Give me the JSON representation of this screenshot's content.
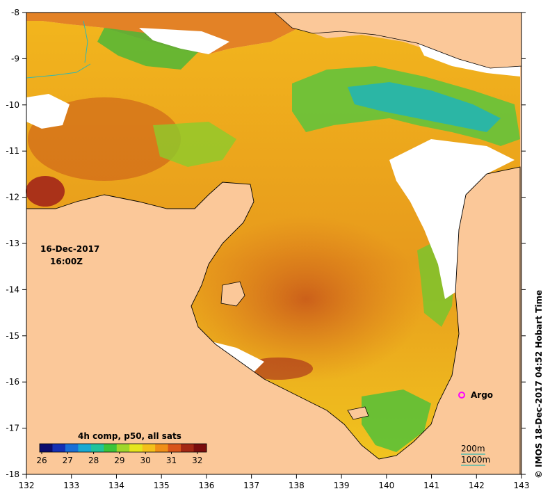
{
  "map": {
    "date_line": "16-Dec-2017",
    "time_line": "16:00Z",
    "credit": "© IMOS 18-Dec-2017 04:52 Hobart Time",
    "longitude_ticks": [
      "132",
      "133",
      "134",
      "135",
      "136",
      "137",
      "138",
      "139",
      "140",
      "141",
      "142",
      "143"
    ],
    "latitude_ticks": [
      "-8",
      "-9",
      "-10",
      "-11",
      "-12",
      "-13",
      "-14",
      "-15",
      "-16",
      "-17",
      "-18"
    ],
    "colorbar": {
      "title": "4h comp, p50, all sats",
      "tick_labels": [
        "26",
        "27",
        "28",
        "29",
        "30",
        "31",
        "32"
      ],
      "colors": [
        "#0b0c6e",
        "#1430b4",
        "#1a6fd6",
        "#19a9d2",
        "#22c39c",
        "#3cc43a",
        "#9fd72a",
        "#e6e51d",
        "#f4c01a",
        "#f08f17",
        "#d9551a",
        "#a32713",
        "#7a0d0d"
      ]
    },
    "marker": {
      "label": "Argo",
      "color": "#ff00ff"
    },
    "depth_legend": {
      "contour_200": "200m",
      "contour_1000": "1000m",
      "color": "#2fb8b3"
    },
    "colors": {
      "land": "#fbc899",
      "no_data": "#ffffff",
      "frame": "#000000"
    }
  }
}
